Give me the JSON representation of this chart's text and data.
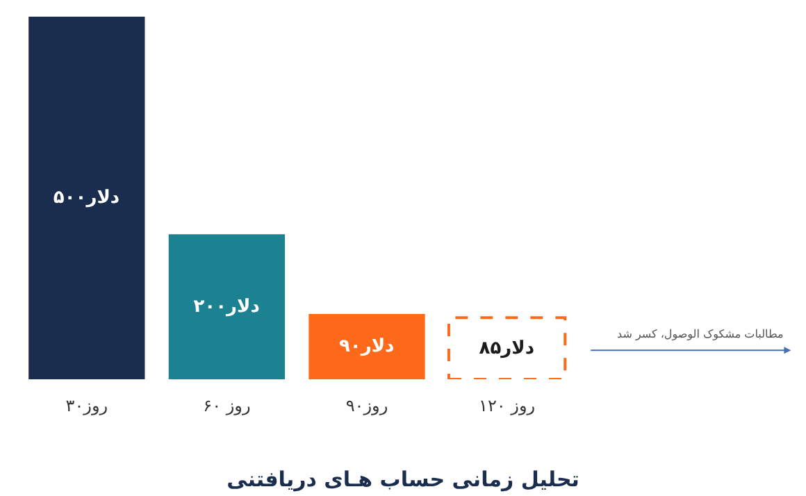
{
  "chart_data": {
    "type": "bar",
    "title": "تحلیل زمانی حساب هـای دریافتنی",
    "categories": [
      "۳۰روز",
      "۶۰ روز",
      "۹۰روز",
      "۱۲۰ روز"
    ],
    "series": [
      {
        "values": [
          500,
          200,
          90,
          null
        ],
        "colors": [
          "#1b2d4f",
          "#1c8190",
          "#ff6a1a",
          null
        ],
        "value_labels": [
          "۵۰۰دلار",
          "۲۰۰دلار",
          "۹۰دلار",
          null
        ]
      },
      {
        "values": [
          null,
          null,
          null,
          85
        ],
        "color": "#ff6a1a",
        "line_style": "dashed",
        "value_labels": [
          null,
          null,
          null,
          "۸۵دلار"
        ]
      }
    ],
    "ylim": [
      0,
      500
    ],
    "grid": false,
    "annotations": [
      "مطالبات مشکوک الوصول، کسر شد"
    ]
  }
}
